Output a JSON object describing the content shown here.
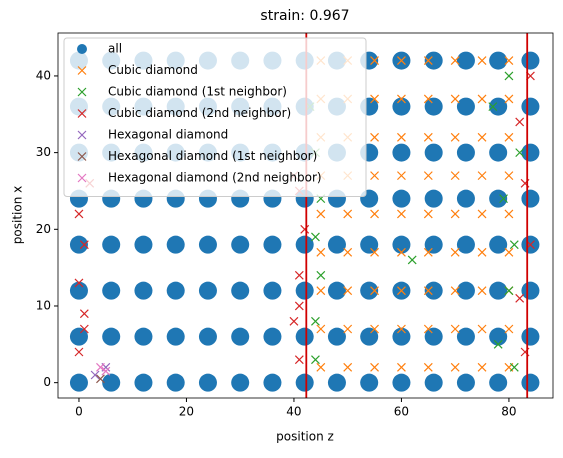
{
  "chart_data": {
    "type": "scatter",
    "title": "strain: 0.967",
    "xlabel": "position z",
    "ylabel": "position x",
    "xlim": [
      -3.9,
      88.2
    ],
    "ylim": [
      -2,
      45.6
    ],
    "xticks": [
      0,
      20,
      40,
      60,
      80
    ],
    "yticks": [
      0,
      10,
      20,
      30,
      40
    ],
    "grid": false,
    "legend": "upper left",
    "vlines": [
      42.3,
      83.4
    ],
    "vline_color": "#d00000",
    "series": [
      {
        "name": "all",
        "color": "#1f77b4",
        "marker": "o",
        "x": [
          0,
          6,
          12,
          18,
          24,
          30,
          36,
          42,
          48,
          54,
          60,
          66,
          72,
          78,
          84,
          0,
          6,
          12,
          18,
          24,
          30,
          36,
          42,
          48,
          54,
          60,
          66,
          72,
          78,
          84,
          0,
          6,
          12,
          18,
          24,
          30,
          36,
          42,
          48,
          54,
          60,
          66,
          72,
          78,
          84,
          0,
          6,
          12,
          18,
          24,
          30,
          36,
          42,
          48,
          54,
          60,
          66,
          72,
          78,
          84,
          0,
          6,
          12,
          18,
          24,
          30,
          36,
          42,
          48,
          54,
          60,
          66,
          72,
          78,
          84,
          0,
          6,
          12,
          18,
          24,
          30,
          36,
          42,
          48,
          54,
          60,
          66,
          72,
          78,
          84,
          0,
          6,
          12,
          18,
          24,
          30,
          36,
          42,
          48,
          54,
          60,
          66,
          72,
          78,
          84,
          0,
          6,
          12,
          18,
          24,
          30,
          36,
          42,
          48,
          54,
          60,
          66,
          72,
          78,
          84
        ],
        "values": [
          0,
          0,
          0,
          0,
          0,
          0,
          0,
          0,
          0,
          0,
          0,
          0,
          0,
          0,
          0,
          6,
          6,
          6,
          6,
          6,
          6,
          6,
          6,
          6,
          6,
          6,
          6,
          6,
          6,
          6,
          12,
          12,
          12,
          12,
          12,
          12,
          12,
          12,
          12,
          12,
          12,
          12,
          12,
          12,
          12,
          18,
          18,
          18,
          18,
          18,
          18,
          18,
          18,
          18,
          18,
          18,
          18,
          18,
          18,
          18,
          24,
          24,
          24,
          24,
          24,
          24,
          24,
          24,
          24,
          24,
          24,
          24,
          24,
          24,
          24,
          30,
          30,
          30,
          30,
          30,
          30,
          30,
          30,
          30,
          30,
          30,
          30,
          30,
          30,
          30,
          36,
          36,
          36,
          36,
          36,
          36,
          36,
          36,
          36,
          36,
          36,
          36,
          36,
          36,
          36,
          42,
          42,
          42,
          42,
          42,
          42,
          42,
          42,
          42,
          42,
          42,
          42,
          42,
          42,
          42
        ]
      },
      {
        "name": "Cubic diamond",
        "color": "#ff7f0e",
        "marker": "x",
        "x": [
          45,
          50,
          55,
          60,
          65,
          70,
          75,
          80,
          45,
          50,
          55,
          60,
          65,
          70,
          75,
          80,
          45,
          50,
          55,
          60,
          65,
          70,
          75,
          80,
          45,
          50,
          55,
          60,
          65,
          70,
          75,
          80,
          45,
          50,
          55,
          60,
          65,
          70,
          75,
          80,
          45,
          50,
          55,
          60,
          65,
          70,
          75,
          80,
          45,
          50,
          55,
          60,
          65,
          70,
          75,
          80,
          45,
          50,
          55,
          60,
          65,
          70,
          75,
          80,
          45,
          50,
          55,
          60,
          65,
          70,
          75,
          80
        ],
        "values": [
          2,
          2,
          2,
          2,
          2,
          2,
          2,
          2,
          7,
          7,
          7,
          7,
          7,
          7,
          7,
          7,
          12,
          12,
          12,
          12,
          12,
          12,
          12,
          12,
          17,
          17,
          17,
          17,
          17,
          17,
          17,
          17,
          22,
          22,
          22,
          22,
          22,
          22,
          22,
          22,
          27,
          27,
          27,
          27,
          27,
          27,
          27,
          27,
          32,
          32,
          32,
          32,
          32,
          32,
          32,
          32,
          37,
          37,
          37,
          37,
          37,
          37,
          37,
          37,
          42,
          42,
          42,
          42,
          42,
          42,
          42,
          42
        ]
      },
      {
        "name": "Cubic diamond (1st neighbor)",
        "color": "#2ca02c",
        "marker": "x",
        "x": [
          44,
          44,
          45,
          44,
          45,
          44,
          43,
          62,
          78,
          80,
          81,
          79,
          82,
          77,
          80,
          81
        ],
        "values": [
          3,
          8,
          14,
          19,
          24,
          30,
          36,
          16,
          5,
          12,
          18,
          24,
          30,
          36,
          40,
          2
        ]
      },
      {
        "name": "Cubic diamond (2nd neighbor)",
        "color": "#d62728",
        "marker": "x",
        "x": [
          0,
          1,
          0,
          1,
          0,
          2,
          1,
          41,
          40,
          41,
          42,
          41,
          40,
          41,
          83,
          82,
          84,
          83,
          82,
          84
        ],
        "values": [
          4,
          9,
          13,
          18,
          22,
          26,
          7,
          3,
          8,
          14,
          20,
          25,
          27,
          10,
          4,
          11,
          18,
          26,
          34,
          40
        ]
      },
      {
        "name": "Hexagonal diamond",
        "color": "#9467bd",
        "marker": "x",
        "x": [
          3,
          5
        ],
        "values": [
          1,
          2
        ]
      },
      {
        "name": "Hexagonal diamond (1st neighbor)",
        "color": "#8c564b",
        "marker": "x",
        "x": [
          4
        ],
        "values": [
          0.5
        ]
      },
      {
        "name": "Hexagonal diamond (2nd neighbor)",
        "color": "#e377c2",
        "marker": "x",
        "x": [
          4,
          5
        ],
        "values": [
          2,
          1.5
        ]
      }
    ]
  }
}
